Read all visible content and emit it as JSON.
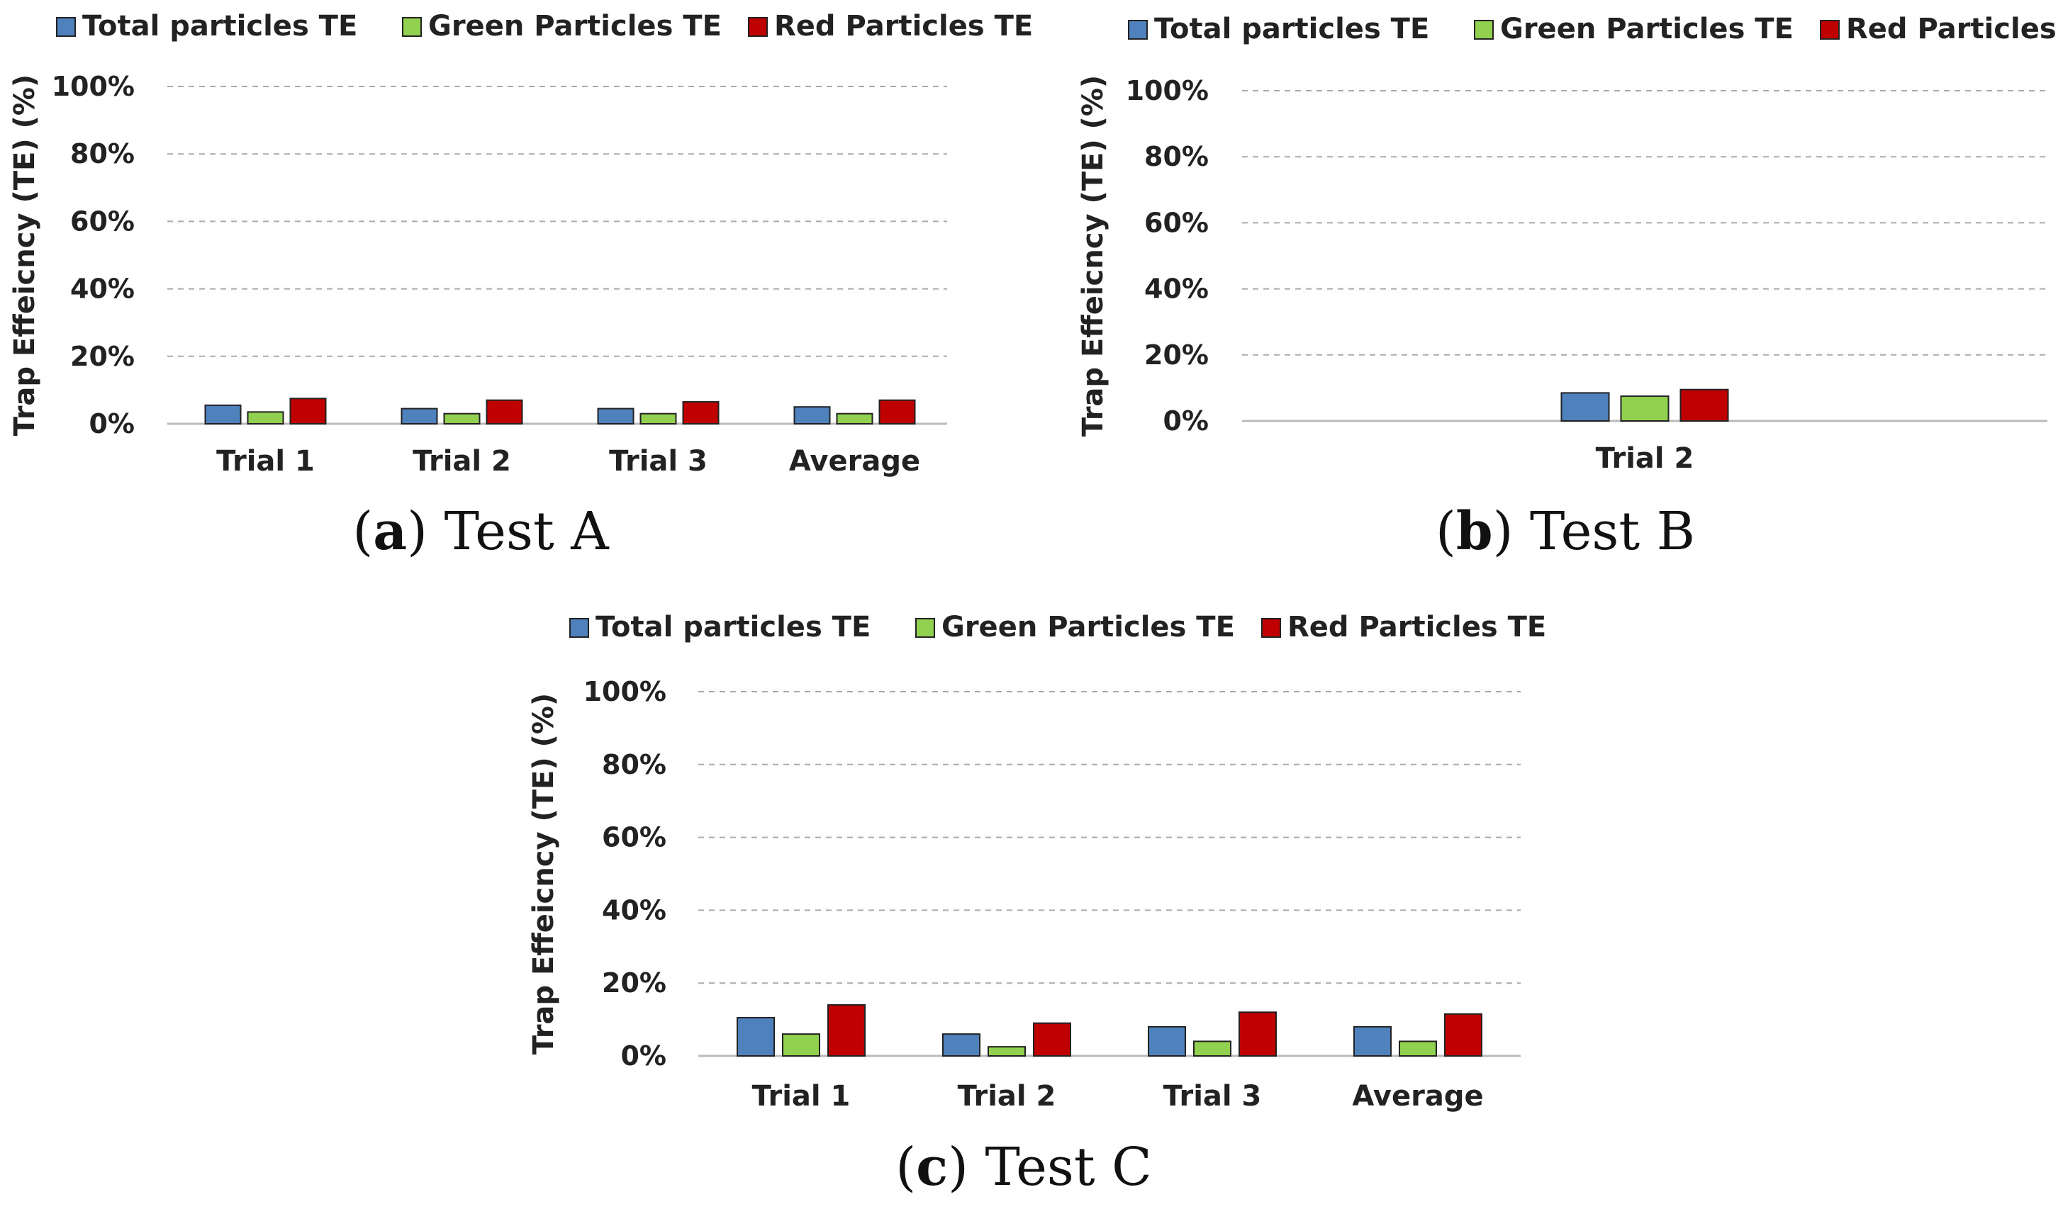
{
  "colors": {
    "total": "#4F81BD",
    "green": "#92D050",
    "red": "#C00000",
    "grid": "#AAAAAA",
    "axis": "#BBBBBB",
    "bar_stroke": "#222222"
  },
  "chart_data": [
    {
      "type": "bar",
      "caption": {
        "letter": "a",
        "text": "Test A",
        "open": "(",
        "close": ")"
      },
      "categories": [
        "Trial 1",
        "Trial 2",
        "Trial 3",
        "Average"
      ],
      "series": [
        {
          "name": "Total particles TE",
          "color": "#4F81BD",
          "values": [
            5.5,
            4.5,
            4.5,
            5.0
          ]
        },
        {
          "name": "Green Particles TE",
          "color": "#92D050",
          "values": [
            3.5,
            3.0,
            3.0,
            3.0
          ]
        },
        {
          "name": "Red Particles TE",
          "color": "#C00000",
          "values": [
            7.5,
            7.0,
            6.5,
            7.0
          ]
        }
      ],
      "ylabel": "Trap Effeicncy (TE) (%)",
      "yticks": [
        "0%",
        "20%",
        "40%",
        "60%",
        "80%",
        "100%"
      ],
      "ylim": [
        0,
        100
      ],
      "grid": true,
      "legend": "top"
    },
    {
      "type": "bar",
      "caption": {
        "letter": "b",
        "text": "Test B",
        "open": "(",
        "close": ")"
      },
      "categories": [
        "Trial 2"
      ],
      "series": [
        {
          "name": "Total particles TE",
          "color": "#4F81BD",
          "values": [
            8.5
          ]
        },
        {
          "name": "Green Particles TE",
          "color": "#92D050",
          "values": [
            7.5
          ]
        },
        {
          "name": "Red Particles TE",
          "color": "#C00000",
          "values": [
            9.5
          ]
        }
      ],
      "ylabel": "Trap Effeicncy (TE) (%)",
      "yticks": [
        "0%",
        "20%",
        "40%",
        "60%",
        "80%",
        "100%"
      ],
      "ylim": [
        0,
        100
      ],
      "grid": true,
      "legend": "top"
    },
    {
      "type": "bar",
      "caption": {
        "letter": "c",
        "text": "Test C",
        "open": "(",
        "close": ")"
      },
      "categories": [
        "Trial 1",
        "Trial 2",
        "Trial 3",
        "Average"
      ],
      "series": [
        {
          "name": "Total particles TE",
          "color": "#4F81BD",
          "values": [
            10.5,
            6.0,
            8.0,
            8.0
          ]
        },
        {
          "name": "Green Particles TE",
          "color": "#92D050",
          "values": [
            6.0,
            2.5,
            4.0,
            4.0
          ]
        },
        {
          "name": "Red Particles TE",
          "color": "#C00000",
          "values": [
            14.0,
            9.0,
            12.0,
            11.5
          ]
        }
      ],
      "ylabel": "Trap Effeicncy (TE) (%)",
      "yticks": [
        "0%",
        "20%",
        "40%",
        "60%",
        "80%",
        "100%"
      ],
      "ylim": [
        0,
        100
      ],
      "grid": true,
      "legend": "top"
    }
  ]
}
